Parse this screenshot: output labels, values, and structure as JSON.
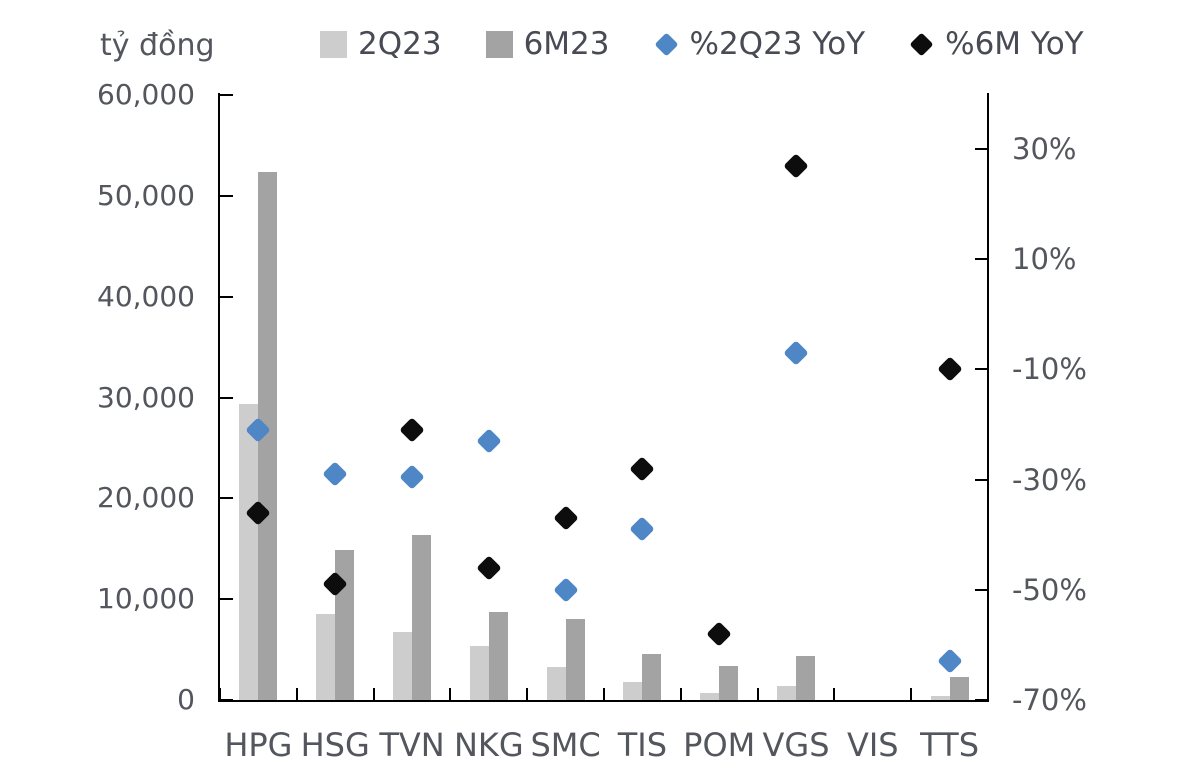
{
  "chart_data": {
    "type": "bar",
    "subtype": "combo-bars-with-percent-markers",
    "categories": [
      "HPG",
      "HSG",
      "TVN",
      "NKG",
      "SMC",
      "TIS",
      "POM",
      "VGS",
      "VIS",
      "TTS"
    ],
    "bar_series": [
      {
        "name": "2Q23",
        "color": "#cdcdcd",
        "axis": "left",
        "values": [
          29400,
          8500,
          6700,
          5400,
          3300,
          1800,
          700,
          1400,
          null,
          400
        ]
      },
      {
        "name": "6M23",
        "color": "#a3a3a3",
        "axis": "left",
        "values": [
          52400,
          14900,
          16400,
          8700,
          8000,
          4600,
          3400,
          4400,
          null,
          2300
        ]
      }
    ],
    "marker_series": [
      {
        "name": "%2Q23 YoY",
        "color": "#4e86c6",
        "axis": "right",
        "marker": "diamond",
        "values": [
          -21,
          -29,
          -29.5,
          -23,
          -50,
          -39,
          null,
          -7,
          null,
          -63
        ]
      },
      {
        "name": "%6M YoY",
        "color": "#0d0d0d",
        "axis": "right",
        "marker": "diamond",
        "values": [
          -36,
          -49,
          -21,
          -46,
          -37,
          -28,
          -58,
          27,
          null,
          -10
        ]
      }
    ],
    "left_axis": {
      "unit": "tỷ đồng",
      "min": 0,
      "max": 60000,
      "step": 10000,
      "tick_values": [
        0,
        10000,
        20000,
        30000,
        40000,
        50000,
        60000
      ],
      "tick_labels": [
        "0",
        "10,000",
        "20,000",
        "30,000",
        "40,000",
        "50,000",
        "60,000"
      ]
    },
    "right_axis": {
      "min": -70,
      "max": 30,
      "step": 20,
      "tick_values": [
        30,
        10,
        -10,
        -30,
        -50,
        -70
      ],
      "tick_labels": [
        "30%",
        "10%",
        "-10%",
        "-30%",
        "-50%",
        "-70%"
      ]
    },
    "grid": "off",
    "legend_position": "top"
  }
}
